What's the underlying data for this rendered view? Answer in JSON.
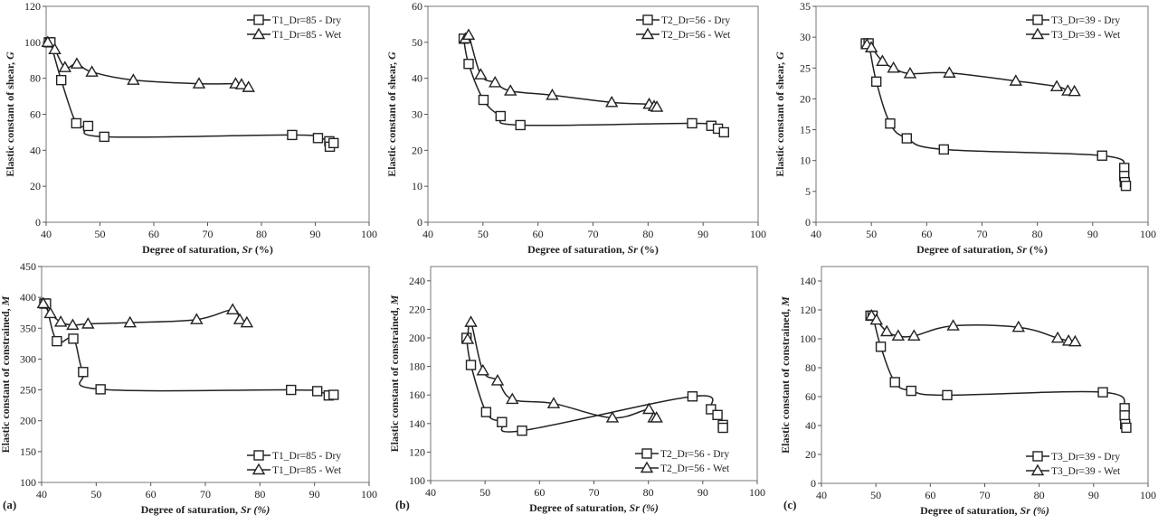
{
  "chart_data": [
    {
      "type": "line",
      "panel_label": "",
      "xlabel": [
        "Degree of saturation, ",
        "Sr",
        " (%)"
      ],
      "ylabel": [
        "Elastic constant of shear, ",
        "G"
      ],
      "xlim": [
        40,
        100
      ],
      "xticks": [
        40,
        50,
        60,
        70,
        80,
        90,
        100
      ],
      "ylim": [
        0,
        120
      ],
      "yticks": [
        0,
        20,
        40,
        60,
        80,
        100,
        120
      ],
      "legend": "top-right",
      "grid": false,
      "series": [
        {
          "name": "T1_Dr=85 - Dry",
          "marker": "square",
          "x": [
            40.5,
            40.8,
            42.8,
            45.6,
            47.8,
            50.8,
            85.7,
            90.5,
            92.6,
            92.7,
            93.4
          ],
          "y": [
            100,
            100,
            79,
            55,
            53.5,
            47.5,
            48.5,
            46.8,
            45,
            42,
            44
          ]
        },
        {
          "name": "T1_Dr=85 - Wet",
          "marker": "triangle",
          "x": [
            40.3,
            41.6,
            43.5,
            45.7,
            48.5,
            56.2,
            68.4,
            75.2,
            76.3,
            77.6
          ],
          "y": [
            100,
            96,
            86,
            88,
            83.5,
            79,
            77,
            77,
            76.5,
            75
          ]
        }
      ]
    },
    {
      "type": "line",
      "panel_label": "",
      "xlabel": [
        "Degree of saturation, ",
        "Sr",
        " (%)"
      ],
      "ylabel": [
        "Elastic constant of shear, ",
        "G"
      ],
      "xlim": [
        40,
        100
      ],
      "xticks": [
        40,
        50,
        60,
        70,
        80,
        90,
        100
      ],
      "ylim": [
        0,
        60
      ],
      "yticks": [
        0,
        10,
        20,
        30,
        40,
        50,
        60
      ],
      "legend": "top-right",
      "grid": false,
      "series": [
        {
          "name": "T2_Dr=56 - Dry",
          "marker": "square",
          "x": [
            46.5,
            47.4,
            50.1,
            53.2,
            56.8,
            88,
            91.5,
            92.7,
            93.8
          ],
          "y": [
            51,
            44,
            34,
            29.5,
            27,
            27.5,
            26.8,
            26,
            25
          ]
        },
        {
          "name": "T2_Dr=56 - Wet",
          "marker": "triangle",
          "x": [
            46.8,
            47.4,
            49.6,
            52.2,
            55,
            62.6,
            73.4,
            80.2,
            81.1,
            81.6
          ],
          "y": [
            51,
            52,
            41,
            38.8,
            36.5,
            35.3,
            33.3,
            32.8,
            32.2,
            32
          ]
        }
      ]
    },
    {
      "type": "line",
      "panel_label": "",
      "xlabel": [
        "Degree of saturation, ",
        "Sr",
        " (%)"
      ],
      "ylabel": [
        "Elastic constant of shear, ",
        "G"
      ],
      "xlim": [
        40,
        100
      ],
      "xticks": [
        40,
        50,
        60,
        70,
        80,
        90,
        100
      ],
      "ylim": [
        0,
        35
      ],
      "yticks": [
        0,
        5,
        10,
        15,
        20,
        25,
        30,
        35
      ],
      "legend": "top-right",
      "grid": false,
      "series": [
        {
          "name": "T3_Dr=39 - Dry",
          "marker": "square",
          "x": [
            49,
            49.5,
            50.9,
            53.4,
            56.4,
            63.1,
            91.7,
            95.7,
            95.7,
            95.8,
            96
          ],
          "y": [
            29,
            29,
            22.8,
            16,
            13.6,
            11.8,
            10.8,
            8.8,
            7.5,
            6.5,
            5.9
          ]
        },
        {
          "name": "T3_Dr=39 - Wet",
          "marker": "triangle",
          "x": [
            49.2,
            50,
            52,
            54,
            57,
            64.1,
            76.1,
            83.5,
            85.5,
            86.7
          ],
          "y": [
            28.8,
            28.3,
            26.1,
            25,
            24.1,
            24.2,
            22.9,
            22,
            21.3,
            21.2
          ]
        }
      ]
    },
    {
      "type": "line",
      "panel_label": "(a)",
      "xlabel": [
        "Degree of saturation, ",
        "Sr",
        " (%)"
      ],
      "ylabel": [
        "Elastic constant of constrained, ",
        "M"
      ],
      "xlim": [
        40,
        100
      ],
      "xticks": [
        40,
        50,
        60,
        70,
        80,
        90,
        100
      ],
      "ylim": [
        100,
        450
      ],
      "yticks": [
        100,
        150,
        200,
        250,
        300,
        350,
        400,
        450
      ],
      "legend": "bottom-right",
      "grid": false,
      "series": [
        {
          "name": "T1_Dr=85 - Dry",
          "marker": "square",
          "x": [
            40.5,
            40.8,
            42.8,
            45.8,
            47.6,
            50.8,
            85.7,
            90.5,
            92.6,
            93.5
          ],
          "y": [
            390,
            390,
            329,
            333,
            279,
            251,
            250,
            248,
            241,
            242
          ]
        },
        {
          "name": "T1_Dr=85 - Wet",
          "marker": "triangle",
          "x": [
            40.3,
            41.6,
            43.5,
            45.7,
            48.5,
            56.2,
            68.4,
            75,
            76.3,
            77.6
          ],
          "y": [
            390,
            374,
            360,
            355,
            357,
            359,
            364,
            380,
            364,
            359
          ]
        }
      ]
    },
    {
      "type": "line",
      "panel_label": "(b)",
      "xlabel": [
        "Degree of saturation, ",
        "Sr",
        " (%)"
      ],
      "ylabel": [
        "Elastic constant of constrained, ",
        "M"
      ],
      "xlim": [
        40,
        100
      ],
      "xticks": [
        40,
        50,
        60,
        70,
        80,
        90,
        100
      ],
      "ylim": [
        100,
        250
      ],
      "yticks": [
        100,
        120,
        140,
        160,
        180,
        200,
        220,
        240
      ],
      "legend": "bottom-right",
      "grid": false,
      "series": [
        {
          "name": "T2_Dr=56 - Dry",
          "marker": "square",
          "x": [
            46.6,
            47.4,
            50.2,
            53.1,
            56.8,
            88.1,
            91.5,
            92.7,
            93.7,
            93.7
          ],
          "y": [
            200,
            181,
            148,
            141,
            135,
            159,
            150,
            146,
            139,
            137
          ]
        },
        {
          "name": "T2_Dr=56 - Wet",
          "marker": "triangle",
          "x": [
            46.8,
            47.4,
            49.6,
            52.3,
            55,
            62.6,
            73.4,
            80.1,
            81,
            81.5
          ],
          "y": [
            199,
            211,
            177,
            170,
            157,
            154,
            144,
            150,
            144,
            144
          ]
        }
      ]
    },
    {
      "type": "line",
      "panel_label": "(c)",
      "xlabel": [
        "Degree of saturation, ",
        "Sr",
        " (%)"
      ],
      "ylabel": [
        "Elastic constant of constrained, ",
        "M"
      ],
      "xlim": [
        40,
        100
      ],
      "xticks": [
        40,
        50,
        60,
        70,
        80,
        90,
        100
      ],
      "ylim": [
        0,
        150
      ],
      "yticks": [
        0,
        20,
        40,
        60,
        80,
        100,
        120,
        140
      ],
      "legend": "bottom-right",
      "grid": false,
      "series": [
        {
          "name": "T3_Dr=39 - Dry",
          "marker": "square",
          "x": [
            49,
            49.4,
            50.9,
            53.5,
            56.5,
            63.1,
            91.7,
            95.7,
            95.7,
            95.8,
            96
          ],
          "y": [
            116,
            116,
            94.5,
            70,
            64,
            61,
            63,
            52,
            47,
            41,
            38.5
          ]
        },
        {
          "name": "T3_Dr=39 - Wet",
          "marker": "triangle",
          "x": [
            49.2,
            50.1,
            52,
            54.1,
            57,
            64.2,
            76.2,
            83.4,
            85.4,
            86.6
          ],
          "y": [
            116,
            113,
            105,
            102,
            102,
            109,
            108,
            100.5,
            98.5,
            98
          ]
        }
      ]
    }
  ]
}
